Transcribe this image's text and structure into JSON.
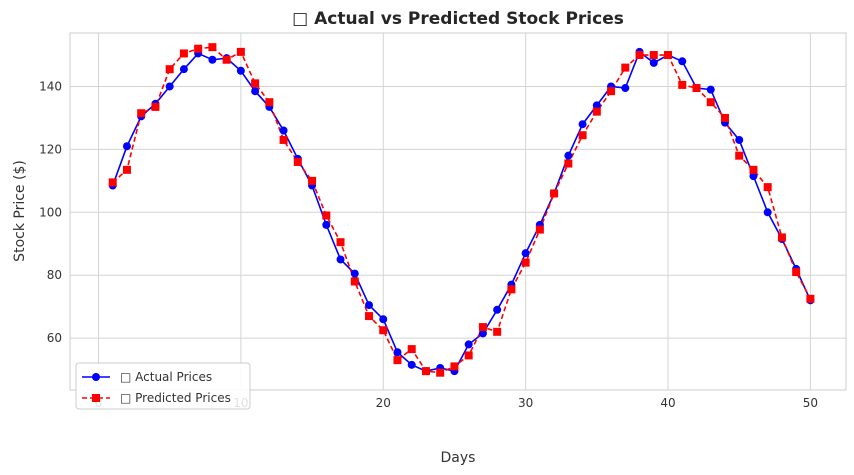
{
  "chart_data": {
    "type": "line",
    "title": "□ Actual vs Predicted Stock Prices",
    "xlabel": "Days",
    "ylabel": "Stock Price ($)",
    "xlim": [
      -2,
      52.5
    ],
    "ylim": [
      43.5,
      157
    ],
    "xticks": [
      0,
      10,
      20,
      30,
      40,
      50
    ],
    "yticks": [
      60,
      80,
      100,
      120,
      140
    ],
    "grid": true,
    "legend_position": "lower-left",
    "x": [
      1,
      2,
      3,
      4,
      5,
      6,
      7,
      8,
      9,
      10,
      11,
      12,
      13,
      14,
      15,
      16,
      17,
      18,
      19,
      20,
      21,
      22,
      23,
      24,
      25,
      26,
      27,
      28,
      29,
      30,
      31,
      32,
      33,
      34,
      35,
      36,
      37,
      38,
      39,
      40,
      41,
      42,
      43,
      44,
      45,
      46,
      47,
      48,
      49,
      50
    ],
    "series": [
      {
        "name": "□ Actual Prices",
        "color": "#0000ff",
        "marker": "circle",
        "linestyle": "solid",
        "values": [
          108.5,
          121,
          130.5,
          134.5,
          140,
          145.5,
          150.5,
          148.5,
          149,
          145,
          138.5,
          133.5,
          126,
          117,
          108.5,
          96,
          85,
          80.5,
          70.5,
          66,
          55.5,
          51.5,
          49.5,
          50.5,
          49.5,
          58,
          61.5,
          69,
          77,
          87,
          96,
          106,
          118,
          128,
          134,
          140,
          139.5,
          151,
          147.5,
          150,
          148,
          139.5,
          139,
          128.5,
          123,
          111.5,
          100,
          91.5,
          82,
          72
        ]
      },
      {
        "name": "□ Predicted Prices",
        "color": "#ff0000",
        "marker": "square",
        "linestyle": "dashed",
        "values": [
          109.5,
          113.5,
          131.5,
          133.5,
          145.5,
          150.5,
          152,
          152.5,
          148.5,
          151,
          141,
          135,
          123,
          116,
          110,
          99,
          90.5,
          78,
          67,
          62.5,
          53,
          56.5,
          49.5,
          49,
          51,
          54.5,
          63.5,
          62,
          75.5,
          84,
          94.5,
          106,
          115.5,
          124.5,
          132,
          138.5,
          146,
          150,
          150,
          150,
          140.5,
          139.5,
          135,
          130,
          118,
          113.5,
          108,
          92,
          81,
          72.5
        ]
      }
    ]
  }
}
